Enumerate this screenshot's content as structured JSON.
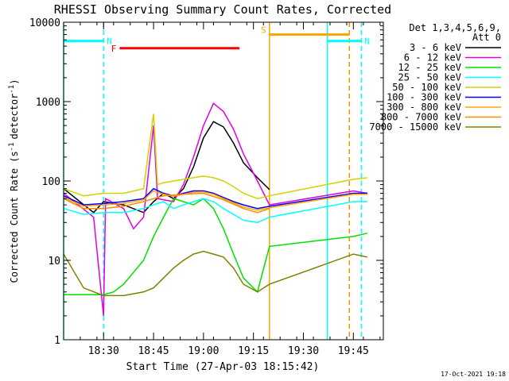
{
  "chart_data": {
    "type": "line",
    "title": "RHESSI Observing Summary Count Rates, Corrected",
    "xlabel": "Start Time (27-Apr-03 18:15:42)",
    "ylabel_main": "Corrected Count Rate (s",
    "ylabel_unit": "detector",
    "ylabel_sup": "-1",
    "y_scale": "log",
    "ylim": [
      1,
      10000
    ],
    "xlim_minutes": [
      18.3,
      19.9
    ],
    "y_ticks": [
      {
        "value": 1,
        "label": "1"
      },
      {
        "value": 10,
        "label": "10"
      },
      {
        "value": 100,
        "label": "100"
      },
      {
        "value": 1000,
        "label": "1000"
      },
      {
        "value": 10000,
        "label": "10000"
      }
    ],
    "x_ticks": [
      {
        "t": 18.5,
        "label": "18:30"
      },
      {
        "t": 18.75,
        "label": "18:45"
      },
      {
        "t": 19.0,
        "label": "19:00"
      },
      {
        "t": 19.25,
        "label": "19:15"
      },
      {
        "t": 19.5,
        "label": "19:30"
      },
      {
        "t": 19.75,
        "label": "19:45"
      }
    ],
    "legend_header": [
      "Det 1,3,4,5,6,9,",
      "Att 0"
    ],
    "legend_position": "right",
    "series": [
      {
        "name": "3 - 6 keV",
        "color": "#000000",
        "points": [
          [
            18.3,
            80
          ],
          [
            18.45,
            40
          ],
          [
            18.5,
            55
          ],
          [
            18.6,
            50
          ],
          [
            18.7,
            40
          ],
          [
            18.75,
            55
          ],
          [
            18.8,
            70
          ],
          [
            18.85,
            60
          ],
          [
            18.9,
            80
          ],
          [
            18.95,
            150
          ],
          [
            19.0,
            350
          ],
          [
            19.05,
            560
          ],
          [
            19.1,
            480
          ],
          [
            19.15,
            300
          ],
          [
            19.2,
            170
          ],
          [
            19.27,
            110
          ],
          [
            19.33,
            78
          ]
        ]
      },
      {
        "name": "6 - 12 keV",
        "color": "#e000e0",
        "points": [
          [
            18.3,
            70
          ],
          [
            18.45,
            35
          ],
          [
            18.5,
            2
          ],
          [
            18.51,
            60
          ],
          [
            18.6,
            45
          ],
          [
            18.65,
            25
          ],
          [
            18.7,
            35
          ],
          [
            18.75,
            500
          ],
          [
            18.77,
            60
          ],
          [
            18.85,
            55
          ],
          [
            18.9,
            90
          ],
          [
            18.95,
            200
          ],
          [
            19.0,
            500
          ],
          [
            19.05,
            950
          ],
          [
            19.1,
            750
          ],
          [
            19.15,
            450
          ],
          [
            19.2,
            220
          ],
          [
            19.27,
            100
          ],
          [
            19.33,
            50
          ],
          [
            19.75,
            75
          ],
          [
            19.82,
            70
          ]
        ]
      },
      {
        "name": "12 - 25 keV",
        "color": "#00e000",
        "points": [
          [
            18.3,
            3.7
          ],
          [
            18.5,
            3.7
          ],
          [
            18.55,
            4
          ],
          [
            18.6,
            5
          ],
          [
            18.7,
            10
          ],
          [
            18.75,
            20
          ],
          [
            18.8,
            35
          ],
          [
            18.85,
            60
          ],
          [
            18.9,
            55
          ],
          [
            18.95,
            50
          ],
          [
            19.0,
            60
          ],
          [
            19.05,
            45
          ],
          [
            19.1,
            25
          ],
          [
            19.15,
            12
          ],
          [
            19.2,
            6
          ],
          [
            19.27,
            4
          ],
          [
            19.33,
            15
          ],
          [
            19.75,
            20
          ],
          [
            19.82,
            22
          ]
        ]
      },
      {
        "name": "25 - 50 keV",
        "color": "#00ffff",
        "points": [
          [
            18.3,
            45
          ],
          [
            18.4,
            38
          ],
          [
            18.5,
            40
          ],
          [
            18.6,
            40
          ],
          [
            18.7,
            45
          ],
          [
            18.75,
            50
          ],
          [
            18.8,
            55
          ],
          [
            18.85,
            45
          ],
          [
            18.9,
            50
          ],
          [
            18.95,
            55
          ],
          [
            19.0,
            60
          ],
          [
            19.05,
            55
          ],
          [
            19.1,
            45
          ],
          [
            19.15,
            38
          ],
          [
            19.2,
            32
          ],
          [
            19.27,
            30
          ],
          [
            19.33,
            35
          ],
          [
            19.75,
            55
          ],
          [
            19.82,
            55
          ]
        ]
      },
      {
        "name": "50 - 100 keV",
        "color": "#d2d200",
        "points": [
          [
            18.3,
            80
          ],
          [
            18.4,
            65
          ],
          [
            18.5,
            70
          ],
          [
            18.6,
            70
          ],
          [
            18.7,
            80
          ],
          [
            18.75,
            700
          ],
          [
            18.77,
            90
          ],
          [
            18.8,
            95
          ],
          [
            18.85,
            100
          ],
          [
            18.9,
            105
          ],
          [
            18.95,
            110
          ],
          [
            19.0,
            115
          ],
          [
            19.05,
            110
          ],
          [
            19.1,
            100
          ],
          [
            19.15,
            85
          ],
          [
            19.2,
            70
          ],
          [
            19.27,
            60
          ],
          [
            19.33,
            65
          ],
          [
            19.75,
            105
          ],
          [
            19.82,
            110
          ]
        ]
      },
      {
        "name": "100 - 300 keV",
        "color": "#0000ff",
        "points": [
          [
            18.3,
            65
          ],
          [
            18.4,
            50
          ],
          [
            18.5,
            52
          ],
          [
            18.6,
            55
          ],
          [
            18.7,
            60
          ],
          [
            18.75,
            80
          ],
          [
            18.8,
            70
          ],
          [
            18.85,
            65
          ],
          [
            18.9,
            70
          ],
          [
            18.95,
            75
          ],
          [
            19.0,
            75
          ],
          [
            19.05,
            70
          ],
          [
            19.1,
            62
          ],
          [
            19.15,
            55
          ],
          [
            19.2,
            50
          ],
          [
            19.27,
            45
          ],
          [
            19.33,
            48
          ],
          [
            19.75,
            70
          ],
          [
            19.82,
            70
          ]
        ]
      },
      {
        "name": "300 - 800 keV",
        "color": "#ffa500",
        "points": [
          [
            18.3,
            62
          ],
          [
            18.4,
            48
          ],
          [
            18.5,
            50
          ],
          [
            18.6,
            52
          ],
          [
            18.7,
            58
          ],
          [
            18.75,
            75
          ],
          [
            18.8,
            68
          ],
          [
            18.85,
            64
          ],
          [
            18.9,
            68
          ],
          [
            18.95,
            72
          ],
          [
            19.0,
            73
          ],
          [
            19.05,
            68
          ],
          [
            19.1,
            60
          ],
          [
            19.15,
            53
          ],
          [
            19.2,
            47
          ],
          [
            19.27,
            43
          ],
          [
            19.33,
            46
          ],
          [
            19.75,
            68
          ],
          [
            19.82,
            68
          ]
        ]
      },
      {
        "name": "800 - 7000 keV",
        "color": "#ff8c00",
        "points": [
          [
            18.3,
            60
          ],
          [
            18.4,
            45
          ],
          [
            18.5,
            45
          ],
          [
            18.6,
            48
          ],
          [
            18.7,
            55
          ],
          [
            18.8,
            65
          ],
          [
            18.9,
            68
          ],
          [
            19.0,
            70
          ],
          [
            19.1,
            58
          ],
          [
            19.2,
            45
          ],
          [
            19.27,
            40
          ],
          [
            19.33,
            45
          ]
        ]
      },
      {
        "name": "7000 - 15000 keV",
        "color": "#808000",
        "points": [
          [
            18.3,
            12
          ],
          [
            18.4,
            4.5
          ],
          [
            18.5,
            3.6
          ],
          [
            18.6,
            3.6
          ],
          [
            18.7,
            4
          ],
          [
            18.75,
            4.5
          ],
          [
            18.8,
            6
          ],
          [
            18.85,
            8
          ],
          [
            18.9,
            10
          ],
          [
            18.95,
            12
          ],
          [
            19.0,
            13
          ],
          [
            19.05,
            12
          ],
          [
            19.1,
            11
          ],
          [
            19.15,
            8
          ],
          [
            19.2,
            5
          ],
          [
            19.27,
            4
          ],
          [
            19.33,
            5
          ],
          [
            19.75,
            12
          ],
          [
            19.82,
            11
          ]
        ]
      }
    ],
    "flags": [
      {
        "label": "F",
        "color": "#ff0000",
        "y": 4700,
        "t_start": 18.58,
        "t_end": 19.18
      },
      {
        "label": "N",
        "color": "#00ffff",
        "y": 5800,
        "t_start": 18.3,
        "t_end": 18.5
      },
      {
        "label": "N",
        "color": "#00ffff",
        "y": 5800,
        "t_start": 19.62,
        "t_end": 19.79
      },
      {
        "label": "S",
        "color": "#ffa500",
        "y": 7000,
        "t_start": 19.33,
        "t_end": 19.73
      }
    ],
    "vertical_lines": [
      {
        "t": 18.3,
        "color": "#00ffff",
        "style": "solid"
      },
      {
        "t": 18.5,
        "color": "#00ffff",
        "style": "dashed"
      },
      {
        "t": 19.33,
        "color": "#ffa500",
        "style": "solid"
      },
      {
        "t": 19.62,
        "color": "#00ffff",
        "style": "solid"
      },
      {
        "t": 19.73,
        "color": "#ff8c00",
        "style": "dashed"
      },
      {
        "t": 19.79,
        "color": "#00ffff",
        "style": "dashed"
      }
    ],
    "footer_date": "17-Oct-2021 19:18",
    "grid": false
  }
}
